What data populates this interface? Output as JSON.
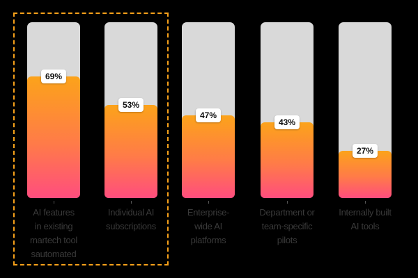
{
  "chart_data": {
    "type": "bar",
    "title": "",
    "xlabel": "",
    "ylabel": "",
    "ylim": [
      0,
      100
    ],
    "grid": false,
    "legend": null,
    "categories": [
      "AI features in existing martech tool sautomated",
      "Individual AI subscriptions",
      "Enterprise-wide AI platforms",
      "Department or team-specific pilots",
      "Internally built AI tools"
    ],
    "values": [
      69,
      53,
      47,
      43,
      27
    ],
    "value_labels": [
      "69%",
      "53%",
      "47%",
      "43%",
      "27%"
    ],
    "highlighted_categories": [
      0,
      1
    ],
    "annotations": [
      "Dashed orange box highlighting first two bars"
    ]
  },
  "bars": [
    {
      "label_lines": [
        "AI features",
        "in existing",
        "martech tool",
        "sautomated"
      ],
      "value": 69,
      "value_label": "69%"
    },
    {
      "label_lines": [
        "Individual AI",
        "subscriptions"
      ],
      "value": 53,
      "value_label": "53%"
    },
    {
      "label_lines": [
        "Enterprise-",
        "wide AI",
        "platforms"
      ],
      "value": 47,
      "value_label": "47%"
    },
    {
      "label_lines": [
        "Department or",
        "team-specific",
        "pilots"
      ],
      "value": 43,
      "value_label": "43%"
    },
    {
      "label_lines": [
        "Internally built",
        "AI tools"
      ],
      "value": 27,
      "value_label": "27%"
    }
  ],
  "colors": {
    "background": "#000000",
    "track": "#d9d9d9",
    "fill_top": "#fca31a",
    "fill_bottom": "#ff4d7e",
    "highlight_border": "#f7a11a",
    "label_text": "#3a3a3a"
  }
}
